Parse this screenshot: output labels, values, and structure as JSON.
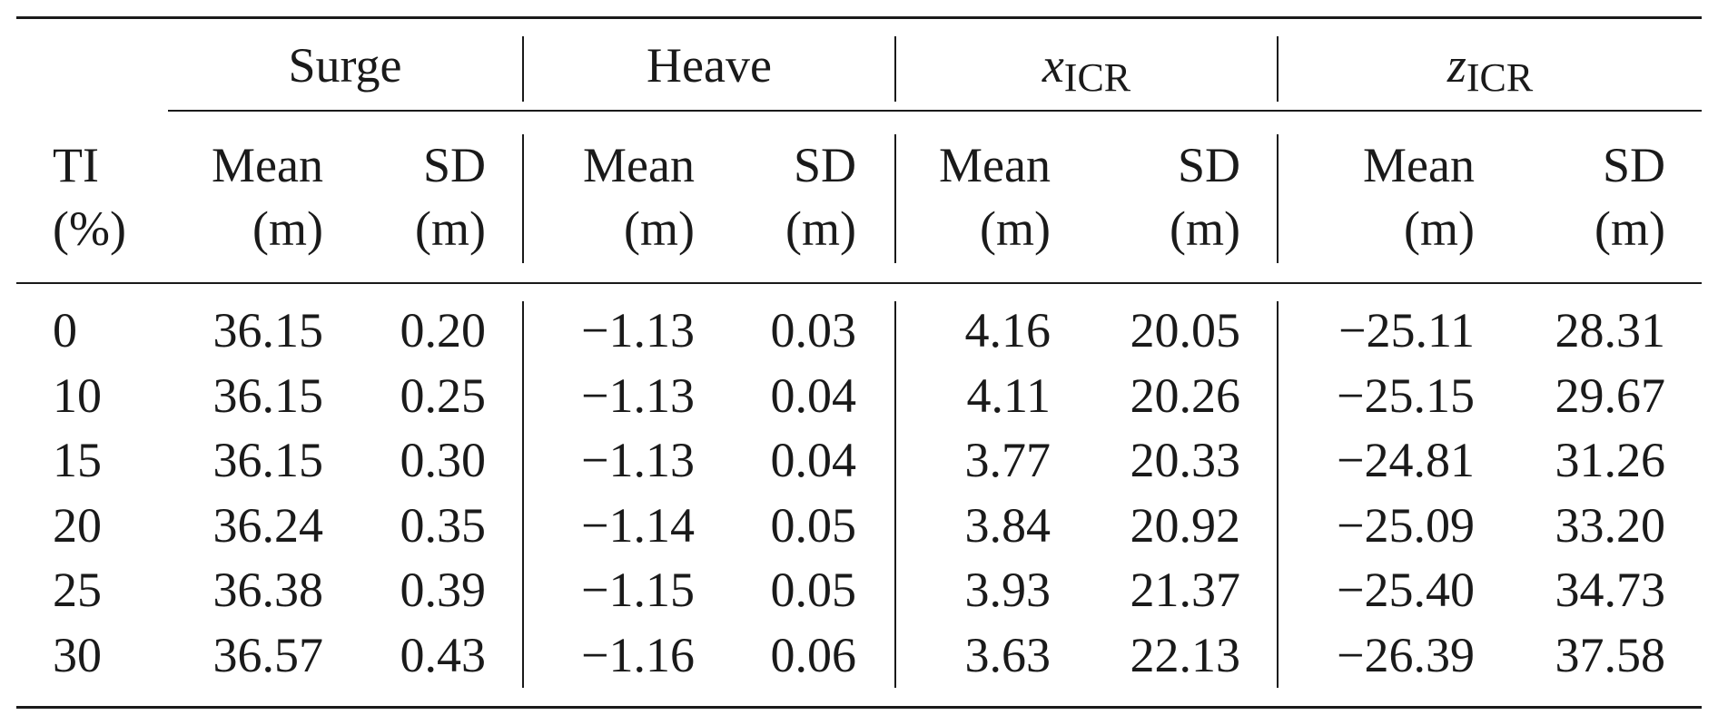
{
  "table": {
    "groups": [
      {
        "label": "Surge"
      },
      {
        "label": "Heave"
      },
      {
        "label_var": "x",
        "label_sub": "ICR"
      },
      {
        "label_var": "z",
        "label_sub": "ICR"
      }
    ],
    "ti_header": {
      "line1": "TI",
      "line2": "(%)"
    },
    "sub_headers": [
      {
        "line1": "Mean",
        "line2": "(m)"
      },
      {
        "line1": "SD",
        "line2": "(m)"
      },
      {
        "line1": "Mean",
        "line2": "(m)"
      },
      {
        "line1": "SD",
        "line2": "(m)"
      },
      {
        "line1": "Mean",
        "line2": "(m)"
      },
      {
        "line1": "SD",
        "line2": "(m)"
      },
      {
        "line1": "Mean",
        "line2": "(m)"
      },
      {
        "line1": "SD",
        "line2": "(m)"
      }
    ],
    "rows": [
      [
        "0",
        "36.15",
        "0.20",
        "−1.13",
        "0.03",
        "4.16",
        "20.05",
        "−25.11",
        "28.31"
      ],
      [
        "10",
        "36.15",
        "0.25",
        "−1.13",
        "0.04",
        "4.11",
        "20.26",
        "−25.15",
        "29.67"
      ],
      [
        "15",
        "36.15",
        "0.30",
        "−1.13",
        "0.04",
        "3.77",
        "20.33",
        "−24.81",
        "31.26"
      ],
      [
        "20",
        "36.24",
        "0.35",
        "−1.14",
        "0.05",
        "3.84",
        "20.92",
        "−25.09",
        "33.20"
      ],
      [
        "25",
        "36.38",
        "0.39",
        "−1.15",
        "0.05",
        "3.93",
        "21.37",
        "−25.40",
        "34.73"
      ],
      [
        "30",
        "36.57",
        "0.43",
        "−1.16",
        "0.06",
        "3.63",
        "22.13",
        "−26.39",
        "37.58"
      ]
    ]
  }
}
